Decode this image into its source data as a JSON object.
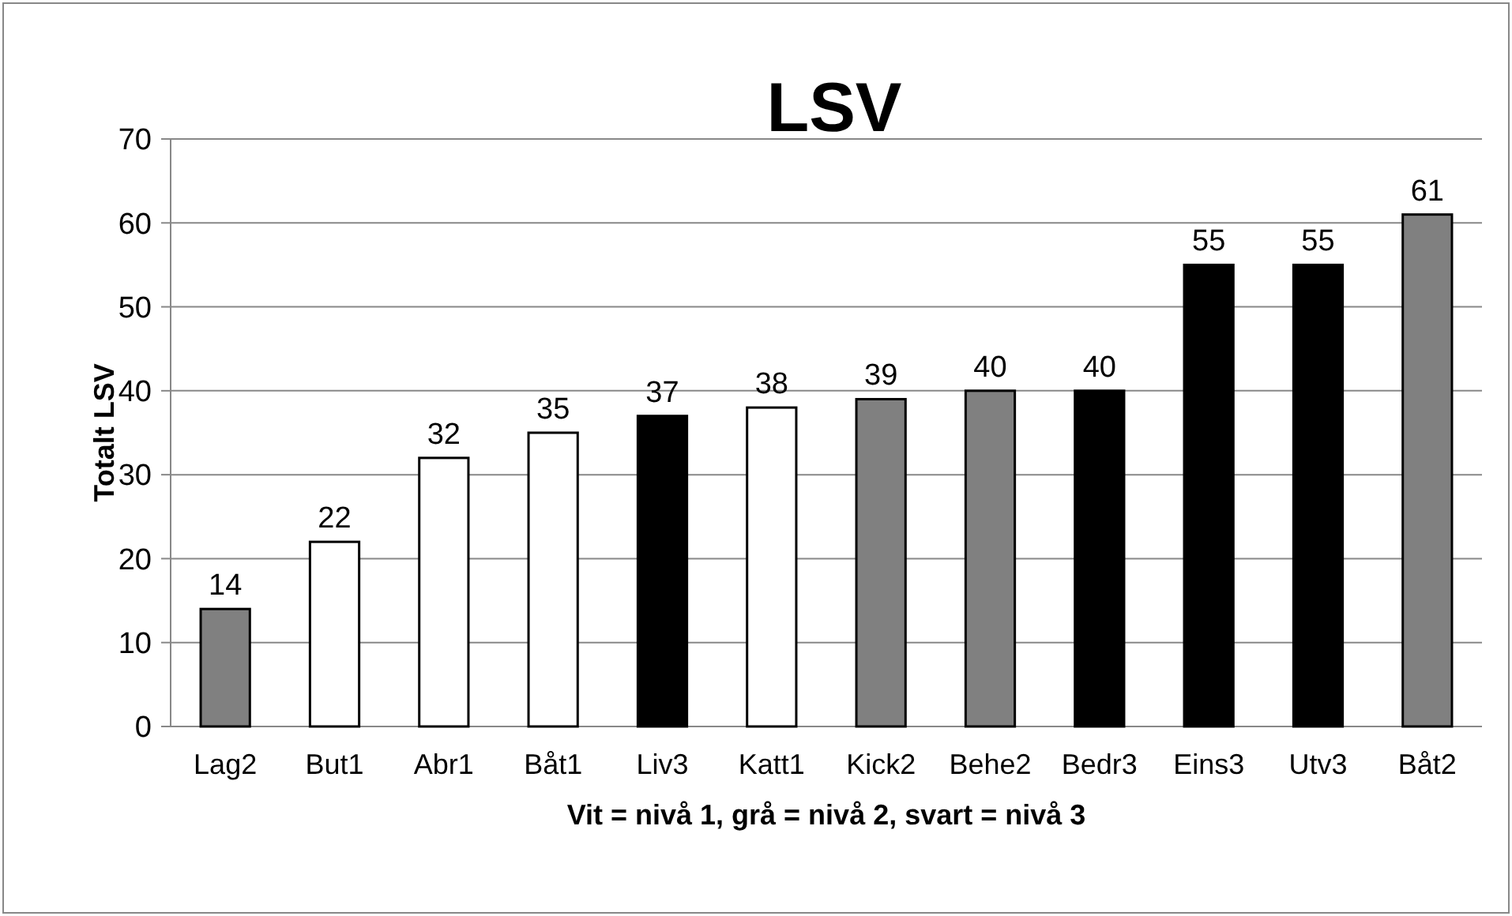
{
  "chart_data": {
    "type": "bar",
    "title": "LSV",
    "xlabel": "Vit = nivå 1, grå = nivå 2, svart = nivå 3",
    "ylabel": "Totalt LSV",
    "categories": [
      "Lag2",
      "But1",
      "Abr1",
      "Båt1",
      "Liv3",
      "Katt1",
      "Kick2",
      "Behe2",
      "Bedr3",
      "Eins3",
      "Utv3",
      "Båt2"
    ],
    "values": [
      14,
      22,
      32,
      35,
      37,
      38,
      39,
      40,
      40,
      55,
      55,
      61
    ],
    "colors": [
      "#808080",
      "#ffffff",
      "#ffffff",
      "#ffffff",
      "#000000",
      "#ffffff",
      "#808080",
      "#808080",
      "#000000",
      "#000000",
      "#000000",
      "#808080"
    ],
    "ylim": [
      0,
      70
    ],
    "yticks": [
      0,
      10,
      20,
      30,
      40,
      50,
      60,
      70
    ],
    "grid": "y",
    "data_labels": true
  }
}
